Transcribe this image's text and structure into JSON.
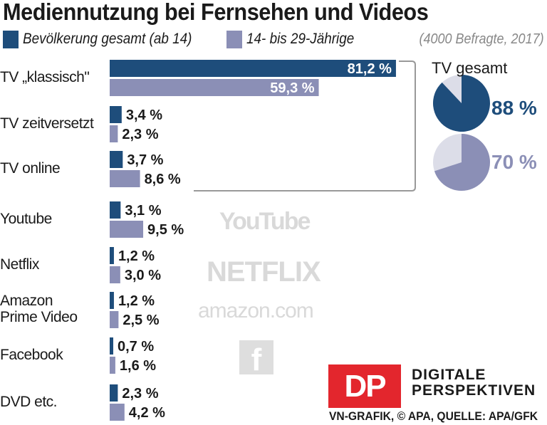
{
  "title": "Mediennutzung bei Fernsehen und Videos",
  "note": "(4000 Befragte, 2017)",
  "colors": {
    "gesamt": "#1e4d7b",
    "jung": "#8b8fb6",
    "pie_rest": "#dcdde8"
  },
  "chart_data": {
    "type": "bar",
    "orientation": "horizontal",
    "categories": [
      "TV „klassisch\"",
      "TV zeitversetzt",
      "TV online",
      "Youtube",
      "Netflix",
      "Amazon Prime Video",
      "Facebook",
      "DVD etc."
    ],
    "series": [
      {
        "name": "Bevölkerung gesamt (ab 14)",
        "values": [
          81.2,
          3.4,
          3.7,
          3.1,
          1.2,
          1.2,
          0.7,
          2.3
        ],
        "labels": [
          "81,2 %",
          "3,4 %",
          "3,7 %",
          "3,1 %",
          "1,2 %",
          "1,2 %",
          "0,7 %",
          "2,3 %"
        ]
      },
      {
        "name": "14- bis 29-Jährige",
        "values": [
          59.3,
          2.3,
          8.6,
          9.5,
          3.0,
          2.5,
          1.6,
          4.2
        ],
        "labels": [
          "59,3 %",
          "2,3 %",
          "8,6 %",
          "9,5 %",
          "3,0 %",
          "2,5 %",
          "1,6 %",
          "4,2 %"
        ]
      }
    ],
    "legend": "top",
    "grid": false
  },
  "pies": {
    "title": "TV gesamt",
    "items": [
      {
        "series": "Bevölkerung gesamt (ab 14)",
        "value": 88,
        "label": "88 %"
      },
      {
        "series": "14- bis 29-Jährige",
        "value": 70,
        "label": "70 %"
      }
    ]
  },
  "watermarks": {
    "youtube": "YouTube",
    "netflix": "NETFLIX",
    "amazon": "amazon.com",
    "facebook": "f"
  },
  "branding": {
    "logo": "DP",
    "name_line1": "DIGITALE",
    "name_line2": "PERSPEKTIVEN",
    "source": "VN-GRAFIK, © APA, QUELLE: APA/GFK"
  }
}
